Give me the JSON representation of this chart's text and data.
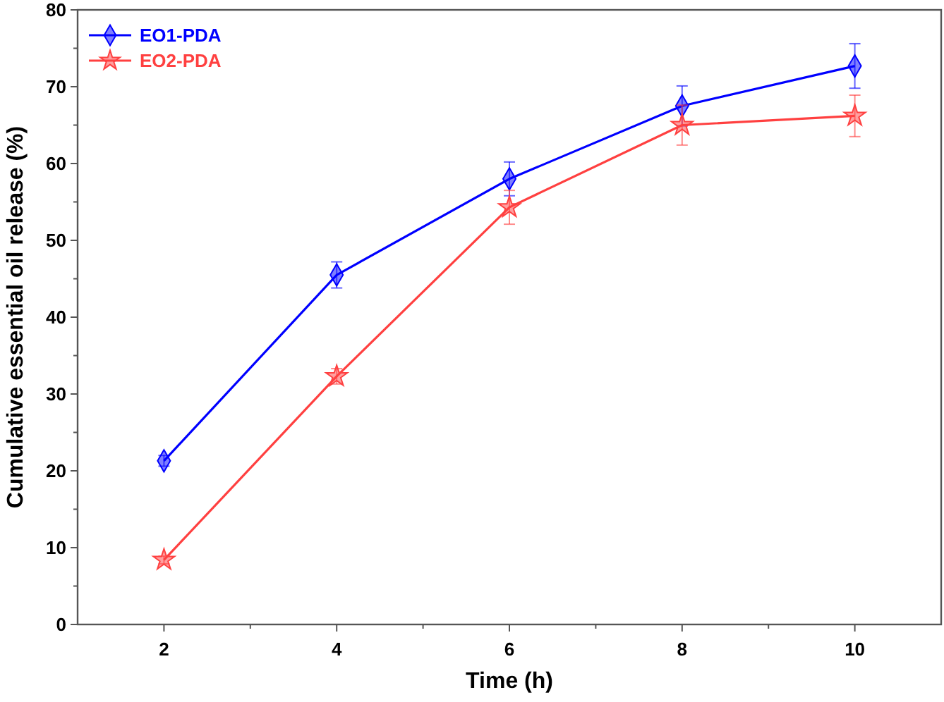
{
  "chart_data": {
    "type": "line",
    "xlabel": "Time (h)",
    "ylabel": "Cumulative essential oil release (%)",
    "x": [
      2,
      4,
      6,
      8,
      10
    ],
    "xlim": [
      1,
      11
    ],
    "xticks": [
      2,
      {
        "value": 3,
        "label": null
      },
      4,
      {
        "value": 5,
        "label": null
      },
      6,
      {
        "value": 7,
        "label": null
      },
      8,
      {
        "value": 9,
        "label": null
      },
      10
    ],
    "ylim": [
      0,
      80
    ],
    "yticks": [
      0,
      {
        "value": 5,
        "label": null
      },
      10,
      {
        "value": 15,
        "label": null
      },
      20,
      {
        "value": 25,
        "label": null
      },
      30,
      {
        "value": 35,
        "label": null
      },
      40,
      {
        "value": 45,
        "label": null
      },
      50,
      {
        "value": 55,
        "label": null
      },
      60,
      {
        "value": 65,
        "label": null
      },
      70,
      {
        "value": 75,
        "label": null
      },
      80
    ],
    "legend": "top left",
    "grid": false,
    "series": [
      {
        "name": "EO1-PDA",
        "color": "#0000ff",
        "marker": "diamond",
        "values": [
          21.3,
          45.5,
          58.0,
          67.5,
          72.7
        ],
        "errors": [
          0.7,
          1.7,
          2.2,
          2.6,
          2.9
        ]
      },
      {
        "name": "EO2-PDA",
        "color": "#ff4040",
        "marker": "star",
        "values": [
          8.4,
          32.3,
          54.3,
          65.0,
          66.2
        ],
        "errors": [
          0.5,
          1.0,
          2.2,
          2.6,
          2.7
        ]
      }
    ]
  }
}
